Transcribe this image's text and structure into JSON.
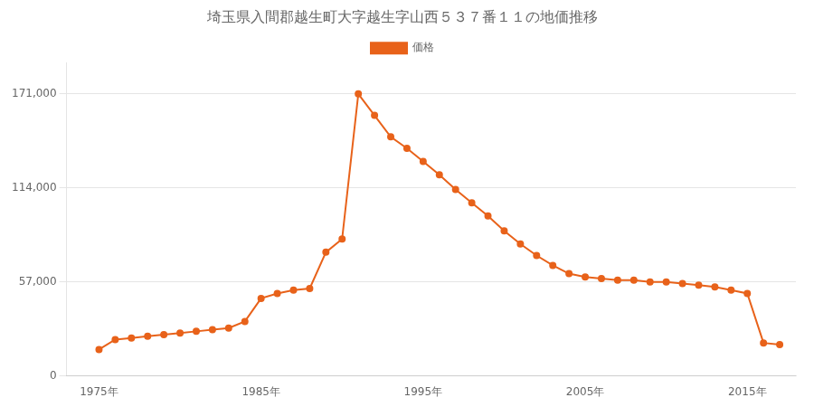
{
  "chart_data": {
    "type": "line",
    "title": "埼玉県入間郡越生町大字越生字山西５３７番１１の地価推移",
    "x": [
      1975,
      1976,
      1977,
      1978,
      1979,
      1980,
      1981,
      1982,
      1983,
      1984,
      1985,
      1986,
      1987,
      1988,
      1989,
      1990,
      1991,
      1992,
      1993,
      1994,
      1995,
      1996,
      1997,
      1998,
      1999,
      2000,
      2001,
      2002,
      2003,
      2004,
      2005,
      2006,
      2007,
      2008,
      2009,
      2010,
      2011,
      2012,
      2013,
      2014,
      2015,
      2016,
      2017
    ],
    "series": [
      {
        "name": "価格",
        "color": "#e8621a",
        "values": [
          16000,
          22000,
          23000,
          24000,
          25000,
          26000,
          27000,
          28000,
          29000,
          33000,
          47000,
          50000,
          52000,
          53000,
          75000,
          83000,
          171000,
          158000,
          145000,
          138000,
          130000,
          122000,
          113000,
          105000,
          97000,
          88000,
          80000,
          73000,
          67000,
          62000,
          60000,
          59000,
          58000,
          58000,
          57000,
          57000,
          56000,
          55000,
          54000,
          52000,
          50000,
          20000,
          19000
        ]
      }
    ],
    "xlim": [
      1973,
      2018
    ],
    "xticks": [
      {
        "value": 1975,
        "label": "1975年"
      },
      {
        "value": 1985,
        "label": "1985年"
      },
      {
        "value": 1995,
        "label": "1995年"
      },
      {
        "value": 2005,
        "label": "2005年"
      },
      {
        "value": 2015,
        "label": "2015年"
      }
    ],
    "ylim": [
      0,
      190000
    ],
    "yticks": [
      0,
      {
        "value": 57000,
        "label": "57,000"
      },
      {
        "value": 114000,
        "label": "114,000"
      },
      {
        "value": 171000,
        "label": "171,000"
      }
    ],
    "grid": "y",
    "legend": "top",
    "marker": "circle"
  }
}
